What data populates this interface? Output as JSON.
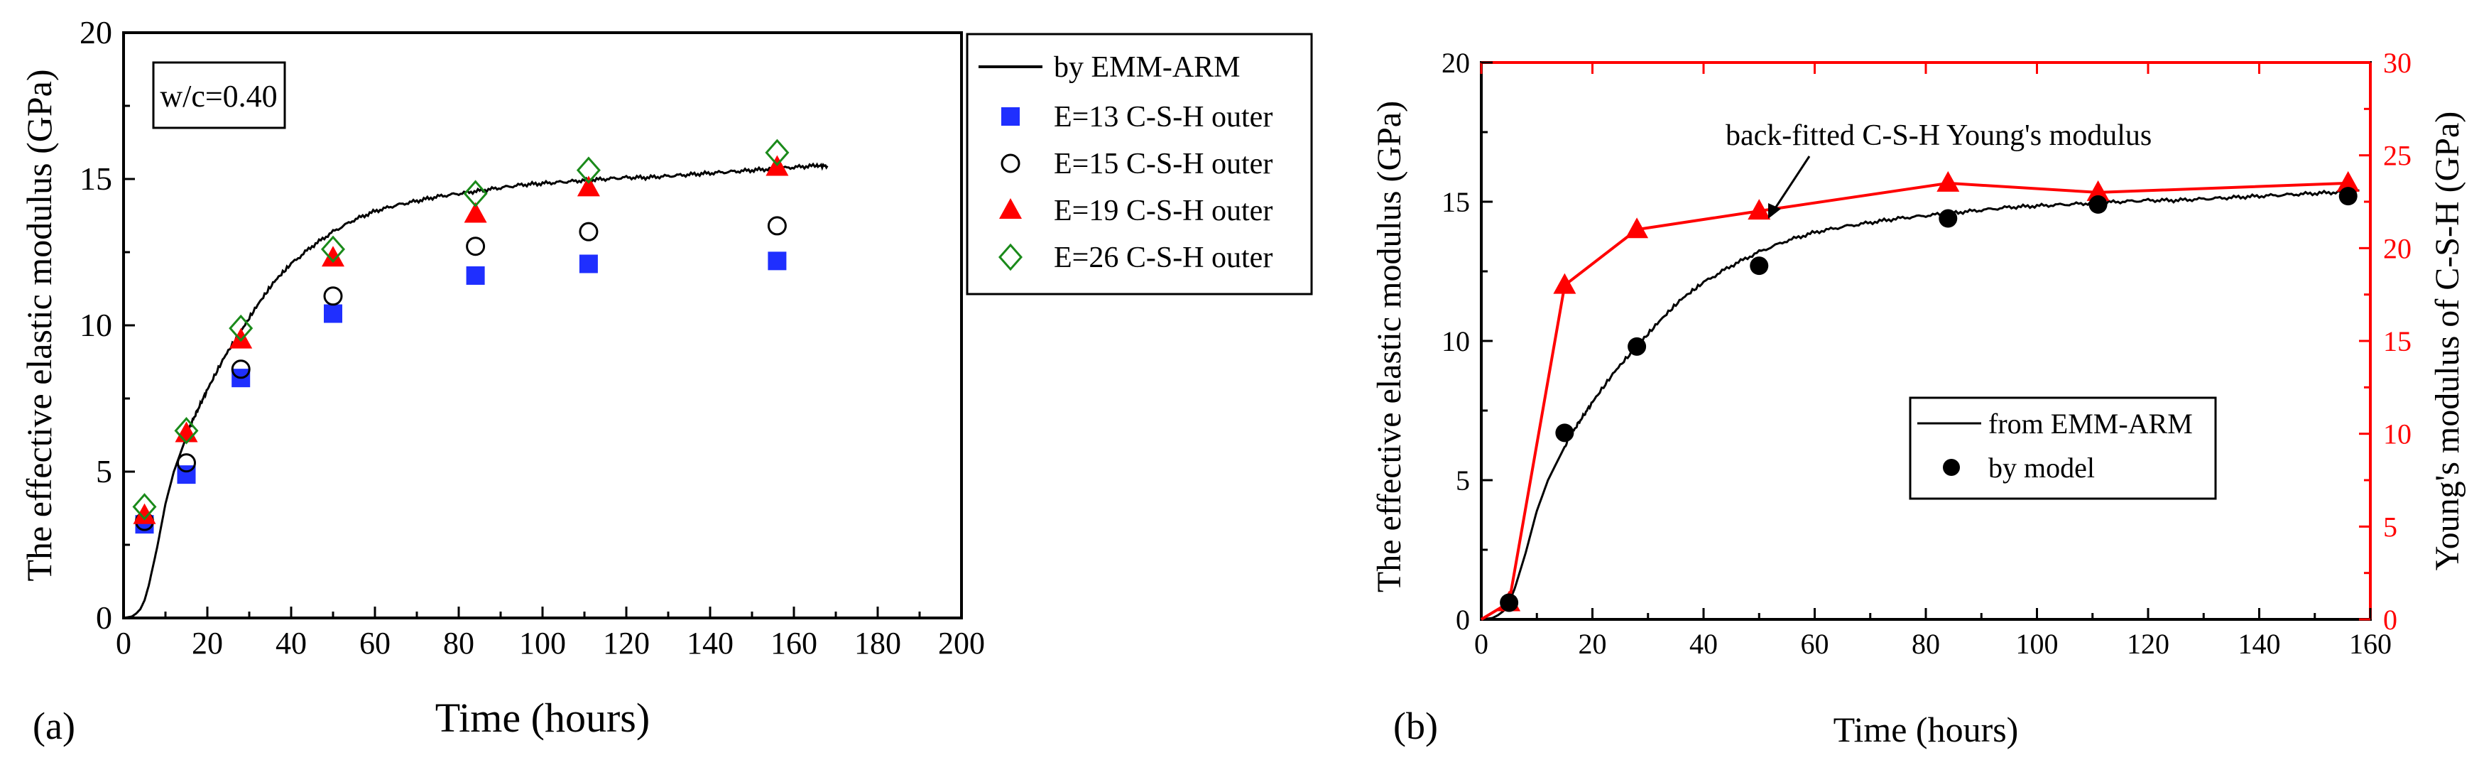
{
  "chart_data": [
    {
      "panel_label": "(a)",
      "type": "scatter",
      "title": "",
      "xlabel": "Time (hours)",
      "ylabel": "The effective elastic modulus (GPa)",
      "xlim": [
        0,
        200
      ],
      "ylim": [
        0,
        20
      ],
      "x_ticks": [
        "0",
        "20",
        "40",
        "60",
        "80",
        "100",
        "120",
        "140",
        "160",
        "180",
        "200"
      ],
      "y_ticks": [
        "0",
        "5",
        "10",
        "15",
        "20"
      ],
      "annotation": "w/c=0.40",
      "legend_position": "outside-right-top",
      "line_series": {
        "name": "by EMM-ARM",
        "color": "#000000",
        "x": [
          0,
          2,
          3,
          4,
          5,
          6,
          8,
          10,
          12,
          14,
          16,
          18,
          20,
          24,
          28,
          32,
          36,
          40,
          45,
          50,
          55,
          60,
          65,
          70,
          75,
          80,
          85,
          90,
          95,
          100,
          105,
          110,
          115,
          120,
          125,
          130,
          135,
          140,
          145,
          150,
          155,
          160,
          165,
          168
        ],
        "y": [
          0,
          0.05,
          0.15,
          0.3,
          0.6,
          1.1,
          2.4,
          3.9,
          5.0,
          5.8,
          6.6,
          7.2,
          7.8,
          8.9,
          9.8,
          10.7,
          11.5,
          12.1,
          12.7,
          13.2,
          13.6,
          13.9,
          14.1,
          14.25,
          14.4,
          14.5,
          14.6,
          14.7,
          14.8,
          14.85,
          14.9,
          14.95,
          15.0,
          15.05,
          15.05,
          15.1,
          15.15,
          15.2,
          15.25,
          15.3,
          15.35,
          15.4,
          15.45,
          15.45
        ]
      },
      "series": [
        {
          "name": "E=13 C-S-H outer",
          "marker": "square",
          "color": "#1f2fff",
          "x": [
            5,
            15,
            28,
            50,
            84,
            111,
            156
          ],
          "y": [
            3.2,
            4.9,
            8.2,
            10.4,
            11.7,
            12.1,
            12.2
          ]
        },
        {
          "name": "E=15 C-S-H outer",
          "marker": "circle",
          "color": "#000000",
          "x": [
            5,
            15,
            28,
            50,
            84,
            111,
            156
          ],
          "y": [
            3.3,
            5.3,
            8.5,
            11.0,
            12.7,
            13.2,
            13.4
          ]
        },
        {
          "name": "E=19 C-S-H outer",
          "marker": "triangle",
          "color": "#ff0000",
          "x": [
            5,
            15,
            28,
            50,
            84,
            111,
            156
          ],
          "y": [
            3.5,
            6.3,
            9.5,
            12.3,
            13.8,
            14.7,
            15.4
          ]
        },
        {
          "name": "E=26 C-S-H outer",
          "marker": "diamond",
          "color": "#1a8a1a",
          "x": [
            5,
            15,
            28,
            50,
            84,
            111,
            156
          ],
          "y": [
            3.8,
            6.4,
            9.9,
            12.6,
            14.5,
            15.3,
            15.9
          ]
        }
      ]
    },
    {
      "panel_label": "(b)",
      "type": "line",
      "title": "",
      "xlabel": "Time (hours)",
      "ylabel": "The effective elastic modulus (GPa)",
      "y2label": "Young's modulus of C-S-H (GPa)",
      "xlim": [
        0,
        160
      ],
      "ylim": [
        0,
        20
      ],
      "y2lim": [
        0,
        30
      ],
      "x_ticks": [
        "0",
        "20",
        "40",
        "60",
        "80",
        "100",
        "120",
        "140",
        "160"
      ],
      "y_ticks": [
        "0",
        "5",
        "10",
        "15",
        "20"
      ],
      "y2_ticks": [
        "0",
        "5",
        "10",
        "15",
        "20",
        "25",
        "30"
      ],
      "annotation": "back-fitted C-S-H Young's modulus",
      "legend_position": "center-right",
      "line_series": {
        "name": "from EMM-ARM",
        "color": "#000000",
        "x": [
          0,
          2,
          3,
          4,
          5,
          6,
          8,
          10,
          12,
          14,
          16,
          18,
          20,
          24,
          28,
          32,
          36,
          40,
          45,
          50,
          55,
          60,
          65,
          70,
          75,
          80,
          85,
          90,
          95,
          100,
          105,
          110,
          115,
          120,
          125,
          130,
          135,
          140,
          145,
          150,
          155,
          158
        ],
        "y": [
          0,
          0.05,
          0.15,
          0.3,
          0.6,
          1.1,
          2.4,
          3.9,
          5.0,
          5.8,
          6.6,
          7.2,
          7.8,
          8.9,
          9.8,
          10.7,
          11.5,
          12.1,
          12.7,
          13.2,
          13.6,
          13.9,
          14.1,
          14.25,
          14.4,
          14.5,
          14.6,
          14.7,
          14.8,
          14.85,
          14.9,
          14.95,
          15.0,
          15.05,
          15.05,
          15.1,
          15.15,
          15.2,
          15.25,
          15.3,
          15.35,
          15.4
        ]
      },
      "model_series": {
        "name": "by model",
        "color": "#000000",
        "x": [
          5,
          15,
          28,
          50,
          84,
          111,
          156
        ],
        "y": [
          0.6,
          6.7,
          9.8,
          12.7,
          14.4,
          14.9,
          15.2
        ]
      },
      "secondary_series": {
        "name": "back-fitted C-S-H Young's modulus",
        "color": "#ff0000",
        "axis": "right",
        "x": [
          0,
          5,
          15,
          28,
          50,
          84,
          111,
          156
        ],
        "y": [
          0,
          0.9,
          18,
          21,
          22,
          23.5,
          23,
          23.5
        ]
      },
      "legend_entries": [
        "from EMM-ARM",
        "by model"
      ]
    }
  ]
}
